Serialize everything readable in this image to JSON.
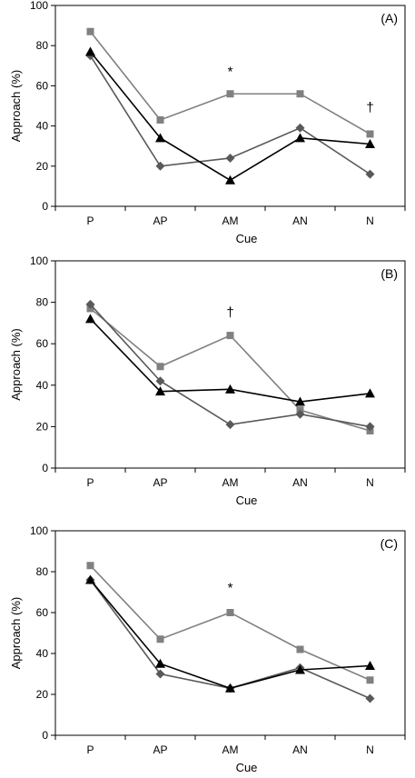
{
  "chart_data": [
    {
      "type": "line",
      "panel_label": "(A)",
      "xlabel": "Cue",
      "ylabel": "Approach (%)",
      "categories": [
        "P",
        "AP",
        "AM",
        "AN",
        "N"
      ],
      "ylim": [
        0,
        100
      ],
      "yticks": [
        0,
        20,
        40,
        60,
        80,
        100
      ],
      "grid": false,
      "legend": "none",
      "series": [
        {
          "marker": "square",
          "color": "#808080",
          "values": [
            87,
            43,
            56,
            56,
            36
          ]
        },
        {
          "marker": "diamond",
          "color": "#595959",
          "values": [
            75,
            20,
            24,
            39,
            16
          ]
        },
        {
          "marker": "triangle",
          "color": "#000000",
          "values": [
            77,
            34,
            13,
            34,
            31
          ]
        }
      ],
      "annotations": [
        {
          "text": "*",
          "category": "AM",
          "y": 65
        },
        {
          "text": "†",
          "category": "N",
          "y": 47
        }
      ]
    },
    {
      "type": "line",
      "panel_label": "(B)",
      "xlabel": "Cue",
      "ylabel": "Approach (%)",
      "categories": [
        "P",
        "AP",
        "AM",
        "AN",
        "N"
      ],
      "ylim": [
        0,
        100
      ],
      "yticks": [
        0,
        20,
        40,
        60,
        80,
        100
      ],
      "grid": false,
      "legend": "none",
      "series": [
        {
          "marker": "square",
          "color": "#808080",
          "values": [
            77,
            49,
            64,
            28,
            18
          ]
        },
        {
          "marker": "diamond",
          "color": "#595959",
          "values": [
            79,
            42,
            21,
            26,
            20
          ]
        },
        {
          "marker": "triangle",
          "color": "#000000",
          "values": [
            72,
            37,
            38,
            32,
            36
          ]
        }
      ],
      "annotations": [
        {
          "text": "†",
          "category": "AM",
          "y": 73
        }
      ]
    },
    {
      "type": "line",
      "panel_label": "(C)",
      "xlabel": "Cue",
      "ylabel": "Approach (%)",
      "categories": [
        "P",
        "AP",
        "AM",
        "AN",
        "N"
      ],
      "ylim": [
        0,
        100
      ],
      "yticks": [
        0,
        20,
        40,
        60,
        80,
        100
      ],
      "grid": false,
      "legend": "none",
      "series": [
        {
          "marker": "square",
          "color": "#808080",
          "values": [
            83,
            47,
            60,
            42,
            27
          ]
        },
        {
          "marker": "diamond",
          "color": "#595959",
          "values": [
            76,
            30,
            23,
            33,
            18
          ]
        },
        {
          "marker": "triangle",
          "color": "#000000",
          "values": [
            76,
            35,
            23,
            32,
            34
          ]
        }
      ],
      "annotations": [
        {
          "text": "*",
          "category": "AM",
          "y": 70
        }
      ]
    }
  ]
}
